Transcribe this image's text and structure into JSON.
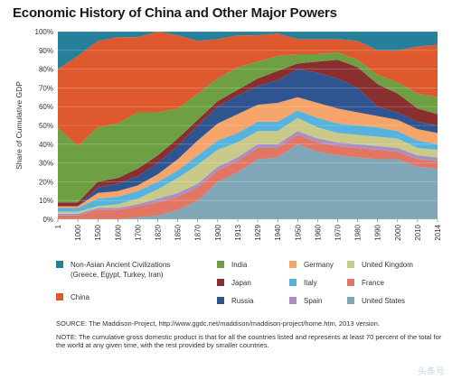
{
  "title": "Economic History of China and Other Major Powers",
  "chart_data": {
    "type": "area",
    "stacked": true,
    "ylabel": "Share of Cumulative GDP",
    "ylim": [
      0,
      100
    ],
    "y_ticks": [
      "0%",
      "10%",
      "20%",
      "30%",
      "40%",
      "50%",
      "60%",
      "70%",
      "80%",
      "90%",
      "100%"
    ],
    "categories": [
      "1",
      "1000",
      "1500",
      "1600",
      "1700",
      "1820",
      "1850",
      "1870",
      "1900",
      "1913",
      "1929",
      "1940",
      "1950",
      "1960",
      "1970",
      "1980",
      "1990",
      "2000",
      "2010",
      "2014"
    ],
    "series_bottom_to_top": [
      {
        "name": "United States",
        "color": "#7fa7b8",
        "values": [
          0,
          0,
          0,
          0,
          1,
          2,
          5,
          10,
          20,
          25,
          32,
          33,
          40,
          36,
          34,
          33,
          32,
          32,
          28,
          27
        ]
      },
      {
        "name": "France",
        "color": "#e07663",
        "values": [
          2,
          2,
          5,
          5,
          6,
          7,
          7,
          7,
          6,
          6,
          6,
          5,
          5,
          5,
          5,
          5,
          5,
          4,
          4,
          4
        ]
      },
      {
        "name": "Spain",
        "color": "#a98fc3",
        "values": [
          1,
          1,
          1,
          1,
          1,
          2,
          2,
          2,
          2,
          2,
          2,
          2,
          2,
          2,
          2,
          2,
          2,
          2,
          2,
          2
        ]
      },
      {
        "name": "United Kingdom",
        "color": "#c9c98a",
        "values": [
          1,
          1,
          1,
          2,
          3,
          5,
          8,
          10,
          9,
          8,
          7,
          7,
          7,
          6,
          5,
          5,
          5,
          5,
          4,
          4
        ]
      },
      {
        "name": "Italy",
        "color": "#56b3dd",
        "values": [
          2,
          2,
          4,
          4,
          4,
          4,
          4,
          5,
          5,
          5,
          5,
          5,
          4,
          5,
          5,
          5,
          5,
          4,
          4,
          3
        ]
      },
      {
        "name": "Germany",
        "color": "#f7a46b",
        "values": [
          1,
          1,
          3,
          3,
          3,
          4,
          6,
          8,
          9,
          10,
          9,
          10,
          7,
          8,
          8,
          7,
          6,
          6,
          6,
          6
        ]
      },
      {
        "name": "Russia",
        "color": "#2f5591",
        "values": [
          0,
          0,
          3,
          4,
          5,
          6,
          7,
          8,
          9,
          10,
          10,
          12,
          15,
          16,
          16,
          13,
          5,
          4,
          4,
          4
        ]
      },
      {
        "name": "Japan",
        "color": "#8a2f2f",
        "values": [
          2,
          2,
          3,
          3,
          4,
          4,
          4,
          3,
          3,
          3,
          4,
          5,
          3,
          6,
          10,
          11,
          12,
          10,
          7,
          6
        ]
      },
      {
        "name": "India",
        "color": "#6ea043",
        "values": [
          40,
          30,
          29,
          29,
          30,
          23,
          16,
          14,
          12,
          12,
          9,
          8,
          5,
          4,
          4,
          4,
          5,
          6,
          8,
          9
        ]
      },
      {
        "name": "China",
        "color": "#de5a2e",
        "values": [
          31,
          48,
          46,
          46,
          40,
          43,
          39,
          28,
          21,
          17,
          14,
          12,
          8,
          8,
          7,
          10,
          13,
          17,
          25,
          28
        ]
      },
      {
        "name": "Non-Asian Ancient Civilizations (Greece, Egypt, Turkey, Iran)",
        "color": "#26809a",
        "values": [
          20,
          13,
          5,
          3,
          3,
          0,
          2,
          5,
          4,
          2,
          2,
          1,
          4,
          4,
          4,
          5,
          10,
          10,
          8,
          7
        ]
      }
    ]
  },
  "legend": [
    {
      "name": "Non-Asian Ancient Civilizations",
      "sub": "(Greece, Egypt, Turkey, Iran)",
      "color": "#26809a"
    },
    {
      "name": "India",
      "color": "#6ea043"
    },
    {
      "name": "Germany",
      "color": "#f7a46b"
    },
    {
      "name": "United Kingdom",
      "color": "#c9c98a"
    },
    {
      "name": "Japan",
      "color": "#8a2f2f"
    },
    {
      "name": "Italy",
      "color": "#56b3dd"
    },
    {
      "name": "France",
      "color": "#e07663"
    },
    {
      "name": "China",
      "color": "#de5a2e"
    },
    {
      "name": "Russia",
      "color": "#2f5591"
    },
    {
      "name": "Spain",
      "color": "#a98fc3"
    },
    {
      "name": "United States",
      "color": "#7fa7b8"
    }
  ],
  "source": "SOURCE: The Maddison-Project, http://www.ggdc.net/maddison/maddison-project/home.htm, 2013 version.",
  "note": "NOTE: The cumulative gross domestic product is that for all the countries listed and represents at least 70 percent of the total for the world at any given time, with the rest provided by smaller countries.",
  "watermark": "头条号"
}
